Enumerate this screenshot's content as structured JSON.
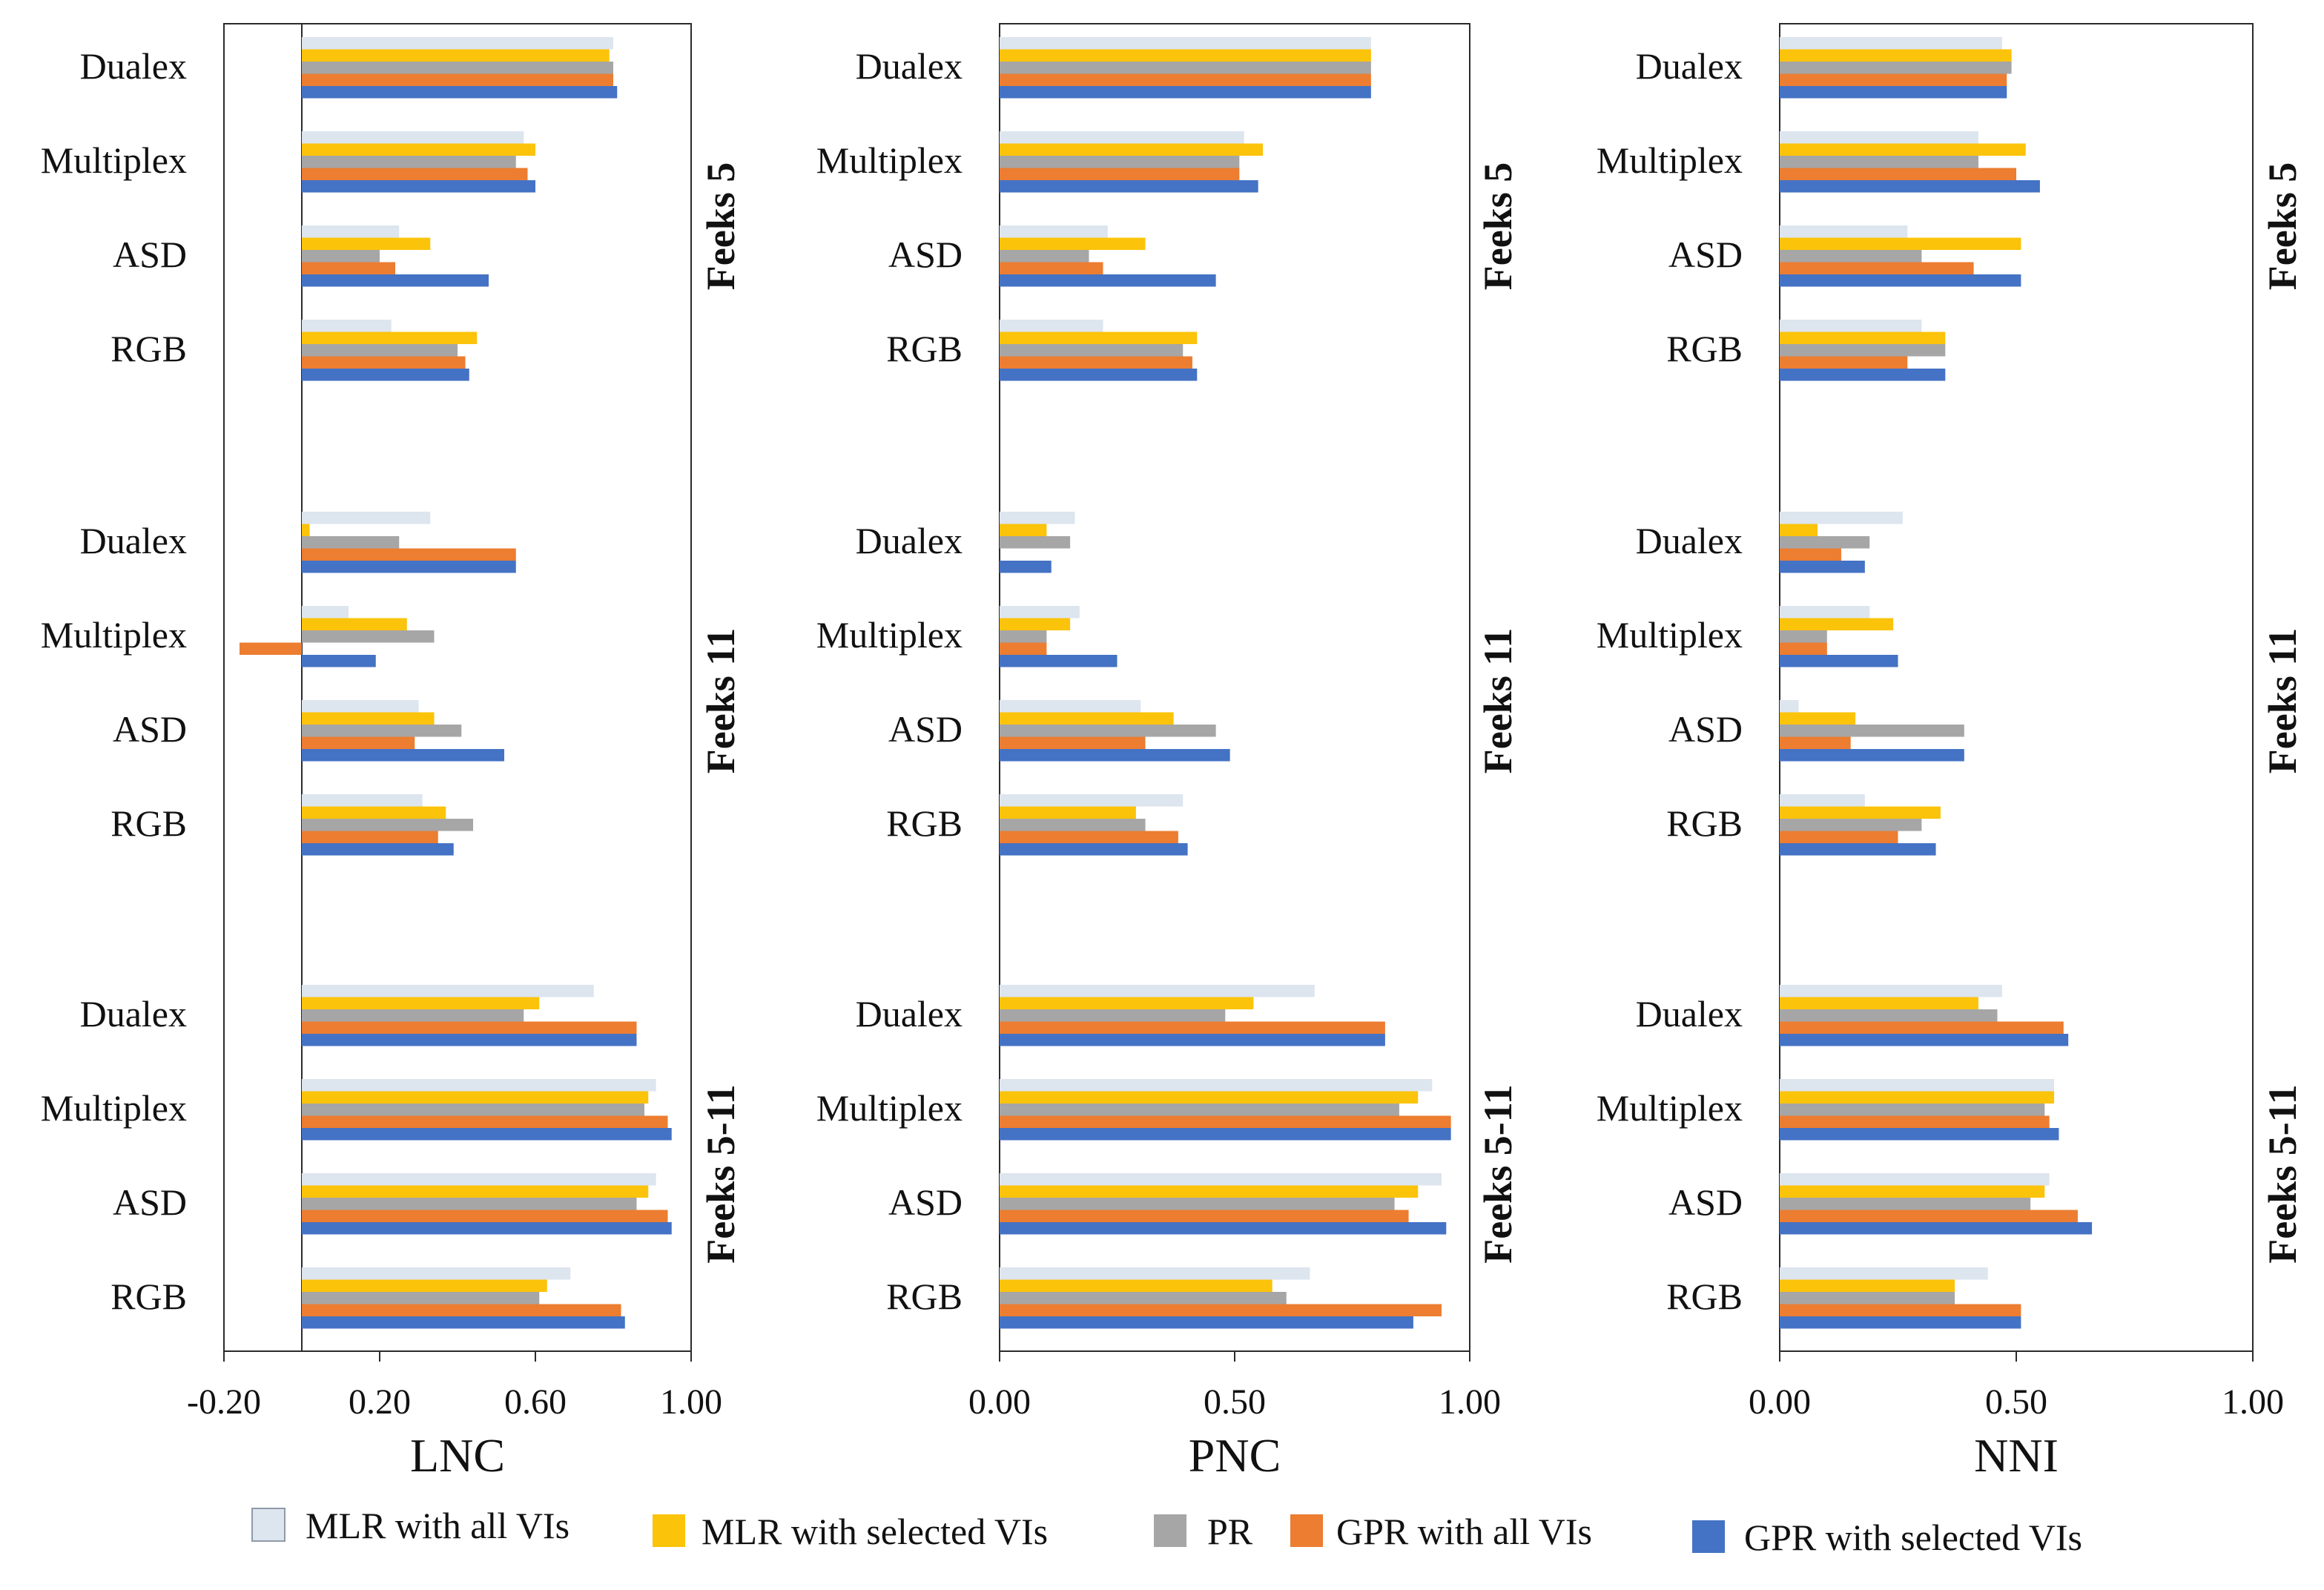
{
  "chart_data": {
    "type": "bar",
    "orientation": "horizontal",
    "series": [
      {
        "key": "mlr_all",
        "name": "MLR  with all VIs",
        "color": "#dde5ef"
      },
      {
        "key": "mlr_sel",
        "name": "MLR  with selected VIs",
        "color": "#fbc30a"
      },
      {
        "key": "pr",
        "name": "PR",
        "color": "#a6a6a6"
      },
      {
        "key": "gpr_all",
        "name": "GPR  with all VIs",
        "color": "#ec7d31"
      },
      {
        "key": "gpr_sel",
        "name": "GPR  with selected VIs",
        "color": "#4472c4"
      }
    ],
    "groups": [
      "Feeks 5",
      "Feeks 11",
      "Feeks 5-11"
    ],
    "categories": [
      "Dualex",
      "Multiplex",
      "ASD",
      "RGB"
    ],
    "panels": [
      {
        "xlabel": "LNC",
        "xlim": [
          -0.2,
          1.0
        ],
        "ticks": [
          -0.2,
          0.2,
          0.6,
          1.0
        ],
        "tick_labels": [
          "-0.20",
          "0.20",
          "0.60",
          "1.00"
        ],
        "data": [
          [
            [
              0.8,
              0.79,
              0.8,
              0.8,
              0.81
            ],
            [
              0.57,
              0.6,
              0.55,
              0.58,
              0.6
            ],
            [
              0.25,
              0.33,
              0.2,
              0.24,
              0.48
            ],
            [
              0.23,
              0.45,
              0.4,
              0.42,
              0.43
            ]
          ],
          [
            [
              0.33,
              0.02,
              0.25,
              0.55,
              0.55
            ],
            [
              0.12,
              0.27,
              0.34,
              -0.16,
              0.19
            ],
            [
              0.3,
              0.34,
              0.41,
              0.29,
              0.52
            ],
            [
              0.31,
              0.37,
              0.44,
              0.35,
              0.39
            ]
          ],
          [
            [
              0.75,
              0.61,
              0.57,
              0.86,
              0.86
            ],
            [
              0.91,
              0.89,
              0.88,
              0.94,
              0.95
            ],
            [
              0.91,
              0.89,
              0.86,
              0.94,
              0.95
            ],
            [
              0.69,
              0.63,
              0.61,
              0.82,
              0.83
            ]
          ]
        ]
      },
      {
        "xlabel": "PNC",
        "xlim": [
          0.0,
          1.0
        ],
        "ticks": [
          0.0,
          0.5,
          1.0
        ],
        "tick_labels": [
          "0.00",
          "0.50",
          "1.00"
        ],
        "data": [
          [
            [
              0.79,
              0.79,
              0.79,
              0.79,
              0.79
            ],
            [
              0.52,
              0.56,
              0.51,
              0.51,
              0.55
            ],
            [
              0.23,
              0.31,
              0.19,
              0.22,
              0.46
            ],
            [
              0.22,
              0.42,
              0.39,
              0.41,
              0.42
            ]
          ],
          [
            [
              0.16,
              0.1,
              0.15,
              0.0,
              0.11
            ],
            [
              0.17,
              0.15,
              0.1,
              0.1,
              0.25
            ],
            [
              0.3,
              0.37,
              0.46,
              0.31,
              0.49
            ],
            [
              0.39,
              0.29,
              0.31,
              0.38,
              0.4
            ]
          ],
          [
            [
              0.67,
              0.54,
              0.48,
              0.82,
              0.82
            ],
            [
              0.92,
              0.89,
              0.85,
              0.96,
              0.96
            ],
            [
              0.94,
              0.89,
              0.84,
              0.87,
              0.95
            ],
            [
              0.66,
              0.58,
              0.61,
              0.94,
              0.88
            ]
          ]
        ]
      },
      {
        "xlabel": "NNI",
        "xlim": [
          0.0,
          1.0
        ],
        "ticks": [
          0.0,
          0.5,
          1.0
        ],
        "tick_labels": [
          "0.00",
          "0.50",
          "1.00"
        ],
        "data": [
          [
            [
              0.47,
              0.49,
              0.49,
              0.48,
              0.48
            ],
            [
              0.42,
              0.52,
              0.42,
              0.5,
              0.55
            ],
            [
              0.27,
              0.51,
              0.3,
              0.41,
              0.51
            ],
            [
              0.3,
              0.35,
              0.35,
              0.27,
              0.35
            ]
          ],
          [
            [
              0.26,
              0.08,
              0.19,
              0.13,
              0.18
            ],
            [
              0.19,
              0.24,
              0.1,
              0.1,
              0.25
            ],
            [
              0.04,
              0.16,
              0.39,
              0.15,
              0.39
            ],
            [
              0.18,
              0.34,
              0.3,
              0.25,
              0.33
            ]
          ],
          [
            [
              0.47,
              0.42,
              0.46,
              0.6,
              0.61
            ],
            [
              0.58,
              0.58,
              0.56,
              0.57,
              0.59
            ],
            [
              0.57,
              0.56,
              0.53,
              0.63,
              0.66
            ],
            [
              0.44,
              0.37,
              0.37,
              0.51,
              0.51
            ]
          ]
        ]
      }
    ]
  }
}
